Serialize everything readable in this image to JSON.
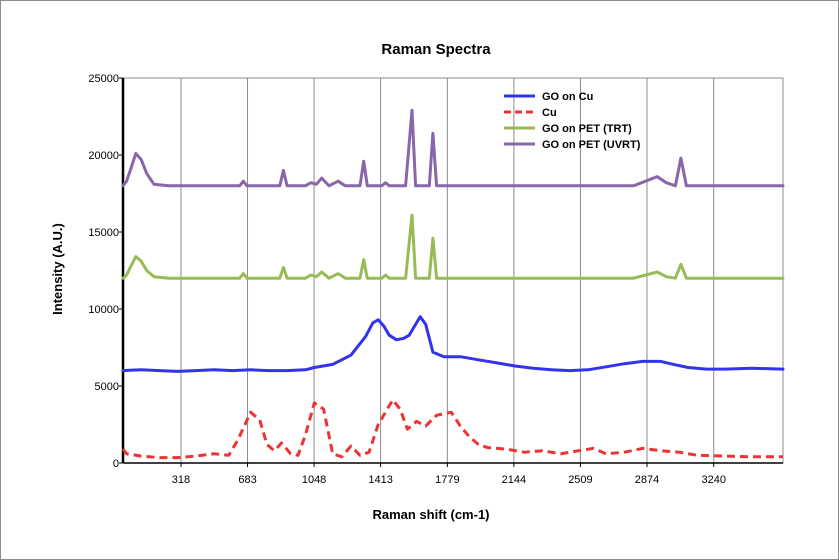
{
  "chart_data": {
    "type": "line",
    "title": "Raman Spectra",
    "xlabel": "Raman shift (cm-1)",
    "ylabel": "Intensity (A.U.)",
    "xlim": [
      0,
      3620
    ],
    "ylim": [
      0,
      25000
    ],
    "x_ticks": [
      318,
      683,
      1048,
      1413,
      1779,
      2144,
      2509,
      2874,
      3240
    ],
    "y_ticks": [
      0,
      5000,
      10000,
      15000,
      20000,
      25000
    ],
    "grid": "vertical",
    "legend_position": "top-right",
    "series": [
      {
        "name": "GO on Cu",
        "color": "#3333ee",
        "dash": "solid",
        "points": [
          [
            -40,
            6000
          ],
          [
            100,
            6050
          ],
          [
            200,
            6000
          ],
          [
            300,
            5950
          ],
          [
            400,
            6000
          ],
          [
            500,
            6050
          ],
          [
            600,
            6000
          ],
          [
            700,
            6050
          ],
          [
            800,
            6000
          ],
          [
            900,
            6000
          ],
          [
            1000,
            6050
          ],
          [
            1050,
            6200
          ],
          [
            1150,
            6400
          ],
          [
            1250,
            7000
          ],
          [
            1330,
            8200
          ],
          [
            1370,
            9100
          ],
          [
            1400,
            9300
          ],
          [
            1430,
            8900
          ],
          [
            1460,
            8300
          ],
          [
            1500,
            8000
          ],
          [
            1540,
            8100
          ],
          [
            1570,
            8300
          ],
          [
            1600,
            8900
          ],
          [
            1630,
            9500
          ],
          [
            1660,
            9000
          ],
          [
            1700,
            7200
          ],
          [
            1760,
            6900
          ],
          [
            1850,
            6900
          ],
          [
            1950,
            6700
          ],
          [
            2050,
            6500
          ],
          [
            2150,
            6300
          ],
          [
            2250,
            6150
          ],
          [
            2350,
            6050
          ],
          [
            2450,
            6000
          ],
          [
            2550,
            6050
          ],
          [
            2650,
            6250
          ],
          [
            2750,
            6450
          ],
          [
            2850,
            6600
          ],
          [
            2950,
            6600
          ],
          [
            3020,
            6400
          ],
          [
            3100,
            6200
          ],
          [
            3200,
            6100
          ],
          [
            3300,
            6100
          ],
          [
            3450,
            6150
          ],
          [
            3620,
            6100
          ]
        ]
      },
      {
        "name": "Cu",
        "color": "#ee3333",
        "dash": "dashed",
        "points": [
          [
            -40,
            900
          ],
          [
            20,
            600
          ],
          [
            100,
            450
          ],
          [
            200,
            350
          ],
          [
            300,
            350
          ],
          [
            400,
            450
          ],
          [
            500,
            600
          ],
          [
            580,
            500
          ],
          [
            630,
            1500
          ],
          [
            700,
            3300
          ],
          [
            750,
            2800
          ],
          [
            790,
            1200
          ],
          [
            830,
            800
          ],
          [
            870,
            1300
          ],
          [
            920,
            600
          ],
          [
            960,
            500
          ],
          [
            1000,
            1800
          ],
          [
            1050,
            3900
          ],
          [
            1100,
            3500
          ],
          [
            1150,
            600
          ],
          [
            1200,
            400
          ],
          [
            1250,
            1100
          ],
          [
            1300,
            500
          ],
          [
            1350,
            700
          ],
          [
            1400,
            2500
          ],
          [
            1480,
            4100
          ],
          [
            1520,
            3500
          ],
          [
            1560,
            2200
          ],
          [
            1610,
            2700
          ],
          [
            1660,
            2400
          ],
          [
            1720,
            3100
          ],
          [
            1800,
            3300
          ],
          [
            1850,
            2400
          ],
          [
            1900,
            1700
          ],
          [
            1950,
            1200
          ],
          [
            2000,
            1000
          ],
          [
            2100,
            900
          ],
          [
            2200,
            700
          ],
          [
            2300,
            800
          ],
          [
            2400,
            600
          ],
          [
            2500,
            800
          ],
          [
            2580,
            950
          ],
          [
            2650,
            600
          ],
          [
            2750,
            700
          ],
          [
            2850,
            950
          ],
          [
            2950,
            800
          ],
          [
            3050,
            700
          ],
          [
            3150,
            500
          ],
          [
            3300,
            450
          ],
          [
            3450,
            400
          ],
          [
            3620,
            400
          ]
        ]
      },
      {
        "name": "GO on PET (TRT)",
        "color": "#99bb55",
        "dash": "solid",
        "points": [
          [
            -40,
            12000
          ],
          [
            20,
            12200
          ],
          [
            40,
            12700
          ],
          [
            70,
            13400
          ],
          [
            100,
            13100
          ],
          [
            130,
            12500
          ],
          [
            170,
            12100
          ],
          [
            250,
            12000
          ],
          [
            400,
            12000
          ],
          [
            640,
            12000
          ],
          [
            660,
            12300
          ],
          [
            680,
            12000
          ],
          [
            860,
            12000
          ],
          [
            880,
            12700
          ],
          [
            900,
            12000
          ],
          [
            1000,
            12000
          ],
          [
            1030,
            12200
          ],
          [
            1060,
            12100
          ],
          [
            1090,
            12400
          ],
          [
            1130,
            12000
          ],
          [
            1180,
            12300
          ],
          [
            1220,
            12000
          ],
          [
            1300,
            12000
          ],
          [
            1320,
            13200
          ],
          [
            1340,
            12000
          ],
          [
            1420,
            12000
          ],
          [
            1440,
            12200
          ],
          [
            1460,
            12000
          ],
          [
            1550,
            12000
          ],
          [
            1585,
            16100
          ],
          [
            1605,
            12000
          ],
          [
            1680,
            12000
          ],
          [
            1700,
            14600
          ],
          [
            1720,
            12000
          ],
          [
            1800,
            12000
          ],
          [
            2000,
            12000
          ],
          [
            2500,
            12000
          ],
          [
            2800,
            12000
          ],
          [
            2930,
            12400
          ],
          [
            2980,
            12100
          ],
          [
            3030,
            12000
          ],
          [
            3060,
            12900
          ],
          [
            3090,
            12000
          ],
          [
            3300,
            12000
          ],
          [
            3620,
            12000
          ]
        ]
      },
      {
        "name": "GO on PET (UVRT)",
        "color": "#8866aa",
        "dash": "solid",
        "points": [
          [
            -40,
            18000
          ],
          [
            20,
            18300
          ],
          [
            40,
            19000
          ],
          [
            70,
            20100
          ],
          [
            100,
            19700
          ],
          [
            130,
            18800
          ],
          [
            170,
            18100
          ],
          [
            250,
            18000
          ],
          [
            400,
            18000
          ],
          [
            640,
            18000
          ],
          [
            660,
            18300
          ],
          [
            680,
            18000
          ],
          [
            860,
            18000
          ],
          [
            880,
            19000
          ],
          [
            900,
            18000
          ],
          [
            1000,
            18000
          ],
          [
            1030,
            18200
          ],
          [
            1060,
            18100
          ],
          [
            1090,
            18500
          ],
          [
            1130,
            18000
          ],
          [
            1180,
            18300
          ],
          [
            1220,
            18000
          ],
          [
            1300,
            18000
          ],
          [
            1320,
            19600
          ],
          [
            1340,
            18000
          ],
          [
            1420,
            18000
          ],
          [
            1440,
            18200
          ],
          [
            1460,
            18000
          ],
          [
            1550,
            18000
          ],
          [
            1585,
            22900
          ],
          [
            1605,
            18000
          ],
          [
            1680,
            18000
          ],
          [
            1700,
            21400
          ],
          [
            1720,
            18000
          ],
          [
            1800,
            18000
          ],
          [
            2000,
            18000
          ],
          [
            2500,
            18000
          ],
          [
            2800,
            18000
          ],
          [
            2930,
            18600
          ],
          [
            2980,
            18200
          ],
          [
            3030,
            18000
          ],
          [
            3060,
            19800
          ],
          [
            3090,
            18000
          ],
          [
            3300,
            18000
          ],
          [
            3620,
            18000
          ]
        ]
      }
    ]
  }
}
